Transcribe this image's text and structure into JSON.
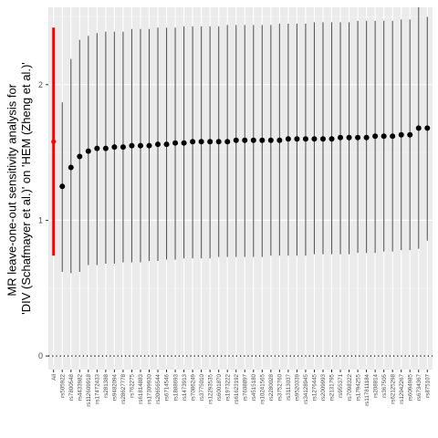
{
  "chart_data": {
    "type": "scatter",
    "title": "",
    "xlabel": "",
    "ylabel_lines": [
      "MR leave-one-out sensitivity analysis for",
      "'DIV (Schafmayer et al.)' on 'HEM (Zheng et al.)'"
    ],
    "ylim": [
      -0.1,
      2.57
    ],
    "yticks": [
      0,
      1,
      2
    ],
    "ytick_labels": [
      "0",
      "1",
      "2"
    ],
    "grid": true,
    "reference_line": 0,
    "colors": {
      "panel_bg": "#ebebeb",
      "grid_major": "#ffffff",
      "grid_minor": "#f4f4f4",
      "point": "#000000",
      "interval": "#5a5a5a",
      "highlight": "#ff0000",
      "axis_text": "#4d4d4d"
    },
    "highlight_category": "All",
    "points": [
      {
        "label": "All",
        "estimate": 1.58,
        "lower": 0.74,
        "upper": 2.42
      },
      {
        "label": "rs505922",
        "estimate": 1.25,
        "lower": 0.62,
        "upper": 1.87
      },
      {
        "label": "rs7800548",
        "estimate": 1.39,
        "lower": 0.61,
        "upper": 2.19
      },
      {
        "label": "rs4433982",
        "estimate": 1.47,
        "lower": 0.62,
        "upper": 2.33
      },
      {
        "label": "rs112609918",
        "estimate": 1.51,
        "lower": 0.67,
        "upper": 2.36
      },
      {
        "label": "rs17472433",
        "estimate": 1.53,
        "lower": 0.67,
        "upper": 2.38
      },
      {
        "label": "rs281388",
        "estimate": 1.53,
        "lower": 0.68,
        "upper": 2.39
      },
      {
        "label": "rs9482094",
        "estimate": 1.54,
        "lower": 0.68,
        "upper": 2.39
      },
      {
        "label": "rs28627778",
        "estimate": 1.54,
        "lower": 0.69,
        "upper": 2.39
      },
      {
        "label": "rs762275",
        "estimate": 1.55,
        "lower": 0.69,
        "upper": 2.41
      },
      {
        "label": "rs61814883",
        "estimate": 1.55,
        "lower": 0.69,
        "upper": 2.41
      },
      {
        "label": "rs17309930",
        "estimate": 1.55,
        "lower": 0.7,
        "upper": 2.41
      },
      {
        "label": "rs20656544",
        "estimate": 1.56,
        "lower": 0.7,
        "upper": 2.42
      },
      {
        "label": "rs6714546",
        "estimate": 1.56,
        "lower": 0.71,
        "upper": 2.42
      },
      {
        "label": "rs1888693",
        "estimate": 1.57,
        "lower": 0.71,
        "upper": 2.42
      },
      {
        "label": "rs1473913",
        "estimate": 1.57,
        "lower": 0.72,
        "upper": 2.43
      },
      {
        "label": "rs7086249",
        "estimate": 1.58,
        "lower": 0.72,
        "upper": 2.43
      },
      {
        "label": "rs3775010",
        "estimate": 1.58,
        "lower": 0.72,
        "upper": 2.43
      },
      {
        "label": "rs12293535",
        "estimate": 1.58,
        "lower": 0.72,
        "upper": 2.43
      },
      {
        "label": "rs6001870",
        "estimate": 1.58,
        "lower": 0.73,
        "upper": 2.43
      },
      {
        "label": "rs1973222",
        "estimate": 1.58,
        "lower": 0.73,
        "upper": 2.44
      },
      {
        "label": "rs61623192",
        "estimate": 1.59,
        "lower": 0.73,
        "upper": 2.44
      },
      {
        "label": "rs7608897",
        "estimate": 1.59,
        "lower": 0.73,
        "upper": 2.44
      },
      {
        "label": "rs4515180",
        "estimate": 1.59,
        "lower": 0.73,
        "upper": 2.44
      },
      {
        "label": "rs10241565",
        "estimate": 1.59,
        "lower": 0.73,
        "upper": 2.44
      },
      {
        "label": "rs2280028",
        "estimate": 1.59,
        "lower": 0.74,
        "upper": 2.44
      },
      {
        "label": "rs3752760",
        "estimate": 1.59,
        "lower": 0.74,
        "upper": 2.45
      },
      {
        "label": "rs3113037",
        "estimate": 1.6,
        "lower": 0.74,
        "upper": 2.45
      },
      {
        "label": "rs9520339",
        "estimate": 1.6,
        "lower": 0.74,
        "upper": 2.45
      },
      {
        "label": "rs34128945",
        "estimate": 1.6,
        "lower": 0.74,
        "upper": 2.45
      },
      {
        "label": "rs1276445",
        "estimate": 1.6,
        "lower": 0.75,
        "upper": 2.46
      },
      {
        "label": "rs2009993",
        "estimate": 1.6,
        "lower": 0.75,
        "upper": 2.46
      },
      {
        "label": "rs2131795",
        "estimate": 1.6,
        "lower": 0.75,
        "upper": 2.46
      },
      {
        "label": "rs955371",
        "estimate": 1.61,
        "lower": 0.75,
        "upper": 2.46
      },
      {
        "label": "rs7098322",
        "estimate": 1.61,
        "lower": 0.75,
        "upper": 2.46
      },
      {
        "label": "rs1794255",
        "estimate": 1.61,
        "lower": 0.76,
        "upper": 2.47
      },
      {
        "label": "rs117811184",
        "estimate": 1.61,
        "lower": 0.76,
        "upper": 2.47
      },
      {
        "label": "rs208814",
        "estimate": 1.62,
        "lower": 0.76,
        "upper": 2.47
      },
      {
        "label": "rs367505",
        "estimate": 1.62,
        "lower": 0.77,
        "upper": 2.47
      },
      {
        "label": "rs62125298",
        "estimate": 1.62,
        "lower": 0.77,
        "upper": 2.47
      },
      {
        "label": "rs12942267",
        "estimate": 1.63,
        "lower": 0.78,
        "upper": 2.48
      },
      {
        "label": "rs6094985",
        "estimate": 1.63,
        "lower": 0.78,
        "upper": 2.48
      },
      {
        "label": "rs6734367",
        "estimate": 1.68,
        "lower": 0.79,
        "upper": 2.57
      },
      {
        "label": "rs875107",
        "estimate": 1.68,
        "lower": 0.85,
        "upper": 2.5
      }
    ]
  }
}
